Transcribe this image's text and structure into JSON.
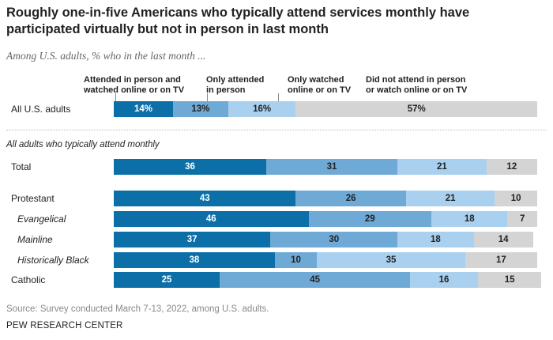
{
  "title": "Roughly one-in-five Americans who typically attend services monthly have participated virtually but not in person in last month",
  "subtitle": "Among U.S. adults, % who in the last month ...",
  "group_label": "All adults who typically attend monthly",
  "source": "Source: Survey conducted March 7-13, 2022, among U.S. adults.",
  "org": "PEW RESEARCH CENTER",
  "colors": {
    "attended_in_person": "#0d6fa8",
    "only_in_person": "#6fa9d6",
    "only_online": "#a9d0ef",
    "did_not_attend": "#d4d4d4"
  },
  "chart_data": {
    "type": "bar",
    "orientation": "horizontal",
    "stacked": true,
    "title": "Roughly one-in-five Americans who typically attend services monthly have participated virtually but not in person in last month",
    "xlim": [
      0,
      100
    ],
    "series": [
      {
        "name": "Attended in person and watched online or on TV",
        "legend_lines": [
          "Attended in person and",
          "watched online or on TV"
        ]
      },
      {
        "name": "Only attended in person",
        "legend_lines": [
          "Only attended",
          "in person"
        ]
      },
      {
        "name": "Only watched online or on TV",
        "legend_lines": [
          "Only watched",
          "online or on TV"
        ]
      },
      {
        "name": "Did not attend in person or watch online or on TV",
        "legend_lines": [
          "Did not attend in person",
          "or watch online or on TV"
        ]
      }
    ],
    "rows": [
      {
        "label": "All U.S. adults",
        "italic": false,
        "values": [
          14,
          13,
          16,
          57
        ],
        "value_labels": [
          "14%",
          "13%",
          "16%",
          "57%"
        ]
      },
      {
        "label": "Total",
        "italic": false,
        "values": [
          36,
          31,
          21,
          12
        ],
        "value_labels": [
          "36",
          "31",
          "21",
          "12"
        ]
      },
      {
        "label": "Protestant",
        "italic": false,
        "values": [
          43,
          26,
          21,
          10
        ],
        "value_labels": [
          "43",
          "26",
          "21",
          "10"
        ]
      },
      {
        "label": "Evangelical",
        "italic": true,
        "values": [
          46,
          29,
          18,
          7
        ],
        "value_labels": [
          "46",
          "29",
          "18",
          "7"
        ]
      },
      {
        "label": "Mainline",
        "italic": true,
        "values": [
          37,
          30,
          18,
          14
        ],
        "value_labels": [
          "37",
          "30",
          "18",
          "14"
        ]
      },
      {
        "label": "Historically Black",
        "italic": true,
        "values": [
          38,
          10,
          35,
          17
        ],
        "value_labels": [
          "38",
          "10",
          "35",
          "17"
        ]
      },
      {
        "label": "Catholic",
        "italic": false,
        "values": [
          25,
          45,
          16,
          15
        ],
        "value_labels": [
          "25",
          "45",
          "16",
          "15"
        ]
      }
    ]
  }
}
